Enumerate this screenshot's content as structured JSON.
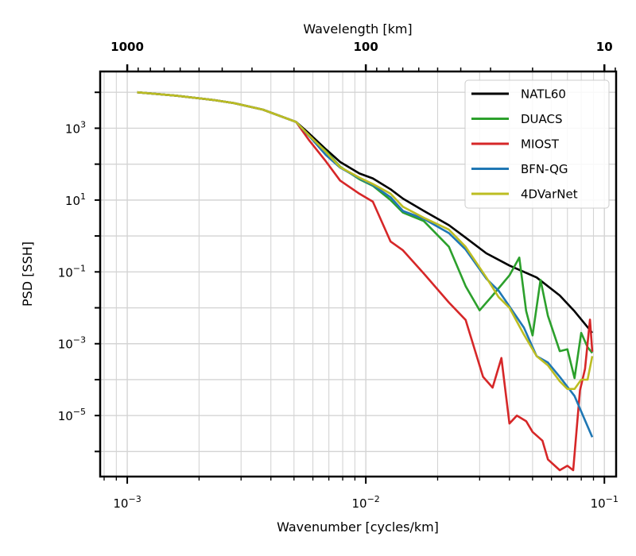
{
  "chart_data": {
    "type": "line",
    "xlabel": "Wavenumber [cycles/km]",
    "ylabel": "PSD [SSH]",
    "top_xlabel": "Wavelength [km]",
    "x_scale": "log",
    "y_scale": "log",
    "xlim": [
      0.00077,
      0.112
    ],
    "ylim": [
      2e-07,
      38000
    ],
    "grid": true,
    "legend_position": "top-right",
    "x_ticks": [
      {
        "value": 0.001,
        "base": "10",
        "exp": "−3"
      },
      {
        "value": 0.01,
        "base": "10",
        "exp": "−2"
      },
      {
        "value": 0.1,
        "base": "10",
        "exp": "−1"
      }
    ],
    "y_ticks": [
      {
        "value": 1000,
        "base": "10",
        "exp": "3"
      },
      {
        "value": 10,
        "base": "10",
        "exp": "1"
      },
      {
        "value": 0.1,
        "base": "10",
        "exp": "−1"
      },
      {
        "value": 0.001,
        "base": "10",
        "exp": "−3"
      },
      {
        "value": 1e-05,
        "base": "10",
        "exp": "−5"
      }
    ],
    "top_ticks": [
      {
        "wavelength": 1000,
        "label": "1000"
      },
      {
        "wavelength": 100,
        "label": "100"
      },
      {
        "wavelength": 10,
        "label": "10"
      }
    ],
    "series": [
      {
        "name": "NATL60",
        "color": "#000000",
        "points": [
          [
            0.0011,
            10000
          ],
          [
            0.0016,
            8100
          ],
          [
            0.0023,
            6100
          ],
          [
            0.0028,
            5000
          ],
          [
            0.0037,
            3300
          ],
          [
            0.0051,
            1500
          ],
          [
            0.0058,
            700
          ],
          [
            0.0068,
            260
          ],
          [
            0.0078,
            115
          ],
          [
            0.0094,
            55
          ],
          [
            0.0107,
            40
          ],
          [
            0.0127,
            20
          ],
          [
            0.0143,
            11
          ],
          [
            0.0175,
            5
          ],
          [
            0.0223,
            2
          ],
          [
            0.0262,
            0.9
          ],
          [
            0.032,
            0.33
          ],
          [
            0.04,
            0.15
          ],
          [
            0.052,
            0.07
          ],
          [
            0.065,
            0.022
          ],
          [
            0.075,
            0.008
          ],
          [
            0.089,
            0.002
          ]
        ]
      },
      {
        "name": "DUACS",
        "color": "#2ca02c",
        "points": [
          [
            0.0011,
            10000
          ],
          [
            0.0016,
            8100
          ],
          [
            0.0023,
            6100
          ],
          [
            0.0028,
            5000
          ],
          [
            0.0037,
            3300
          ],
          [
            0.0051,
            1500
          ],
          [
            0.0058,
            600
          ],
          [
            0.0068,
            230
          ],
          [
            0.0078,
            85
          ],
          [
            0.0094,
            38
          ],
          [
            0.0107,
            25
          ],
          [
            0.0127,
            10
          ],
          [
            0.0143,
            4.5
          ],
          [
            0.0175,
            2.6
          ],
          [
            0.0223,
            0.5
          ],
          [
            0.0262,
            0.04
          ],
          [
            0.03,
            0.0085
          ],
          [
            0.034,
            0.022
          ],
          [
            0.04,
            0.08
          ],
          [
            0.044,
            0.25
          ],
          [
            0.047,
            0.0082
          ],
          [
            0.05,
            0.0017
          ],
          [
            0.054,
            0.06
          ],
          [
            0.058,
            0.006
          ],
          [
            0.065,
            0.00062
          ],
          [
            0.07,
            0.0007
          ],
          [
            0.075,
            0.00011
          ],
          [
            0.08,
            0.002
          ],
          [
            0.085,
            0.0008
          ],
          [
            0.089,
            0.00055
          ]
        ]
      },
      {
        "name": "MIOST",
        "color": "#d62728",
        "points": [
          [
            0.0011,
            10000
          ],
          [
            0.0016,
            8100
          ],
          [
            0.0023,
            6100
          ],
          [
            0.0028,
            5000
          ],
          [
            0.0037,
            3300
          ],
          [
            0.0051,
            1500
          ],
          [
            0.0058,
            450
          ],
          [
            0.0068,
            120
          ],
          [
            0.0078,
            35
          ],
          [
            0.0094,
            15
          ],
          [
            0.0107,
            9
          ],
          [
            0.0127,
            0.7
          ],
          [
            0.0143,
            0.4
          ],
          [
            0.0175,
            0.09
          ],
          [
            0.0223,
            0.014
          ],
          [
            0.0262,
            0.0046
          ],
          [
            0.031,
            0.00012
          ],
          [
            0.034,
            6e-05
          ],
          [
            0.037,
            0.0004
          ],
          [
            0.04,
            6e-06
          ],
          [
            0.043,
            1e-05
          ],
          [
            0.047,
            7e-06
          ],
          [
            0.05,
            3.5e-06
          ],
          [
            0.055,
            2e-06
          ],
          [
            0.058,
            6e-07
          ],
          [
            0.065,
            3e-07
          ],
          [
            0.07,
            4e-07
          ],
          [
            0.074,
            3e-07
          ],
          [
            0.079,
            5e-05
          ],
          [
            0.083,
            0.0002
          ],
          [
            0.087,
            0.0047
          ],
          [
            0.089,
            0.0006
          ]
        ]
      },
      {
        "name": "BFN-QG",
        "color": "#1f77b4",
        "points": [
          [
            0.0011,
            10000
          ],
          [
            0.0016,
            8100
          ],
          [
            0.0023,
            6100
          ],
          [
            0.0028,
            5000
          ],
          [
            0.0037,
            3300
          ],
          [
            0.0051,
            1500
          ],
          [
            0.0058,
            600
          ],
          [
            0.0068,
            180
          ],
          [
            0.0078,
            80
          ],
          [
            0.0094,
            40
          ],
          [
            0.0107,
            26
          ],
          [
            0.0127,
            12
          ],
          [
            0.0143,
            5
          ],
          [
            0.0175,
            3
          ],
          [
            0.0223,
            1.2
          ],
          [
            0.0262,
            0.42
          ],
          [
            0.032,
            0.065
          ],
          [
            0.036,
            0.03
          ],
          [
            0.04,
            0.011
          ],
          [
            0.046,
            0.0028
          ],
          [
            0.052,
            0.00045
          ],
          [
            0.058,
            0.0003
          ],
          [
            0.065,
            0.00012
          ],
          [
            0.075,
            3.5e-05
          ],
          [
            0.089,
            2.5e-06
          ]
        ]
      },
      {
        "name": "4DVarNet",
        "color": "#bcbd22",
        "points": [
          [
            0.0011,
            10000
          ],
          [
            0.0016,
            8100
          ],
          [
            0.0023,
            6100
          ],
          [
            0.0028,
            5000
          ],
          [
            0.0037,
            3300
          ],
          [
            0.0051,
            1500
          ],
          [
            0.0058,
            620
          ],
          [
            0.0068,
            220
          ],
          [
            0.0078,
            82
          ],
          [
            0.0094,
            42
          ],
          [
            0.0107,
            28
          ],
          [
            0.0127,
            15
          ],
          [
            0.0143,
            6.5
          ],
          [
            0.0175,
            3.2
          ],
          [
            0.0223,
            1.5
          ],
          [
            0.0262,
            0.5
          ],
          [
            0.032,
            0.07
          ],
          [
            0.036,
            0.02
          ],
          [
            0.04,
            0.01
          ],
          [
            0.046,
            0.0018
          ],
          [
            0.052,
            0.00045
          ],
          [
            0.058,
            0.00025
          ],
          [
            0.065,
            9e-05
          ],
          [
            0.07,
            5.5e-05
          ],
          [
            0.075,
            5.5e-05
          ],
          [
            0.08,
            0.0001
          ],
          [
            0.085,
            0.0001
          ],
          [
            0.089,
            0.00045
          ]
        ]
      }
    ]
  }
}
